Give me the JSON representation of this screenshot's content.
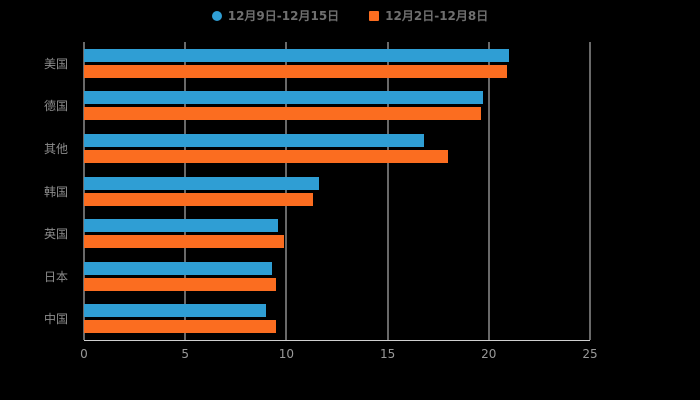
{
  "legend": [
    {
      "label": "12月9日-12月15日",
      "color": "#2f9ed4",
      "shape": "circle"
    },
    {
      "label": "12月2日-12月8日",
      "color": "#fb6d20",
      "shape": "square"
    }
  ],
  "chart_data": {
    "type": "bar",
    "orientation": "horizontal",
    "title": "",
    "categories": [
      "美国",
      "德国",
      "其他",
      "韩国",
      "英国",
      "日本",
      "中国"
    ],
    "series": [
      {
        "name": "12月9日-12月15日",
        "color": "#2f9ed4",
        "values": [
          21.0,
          19.7,
          16.8,
          11.6,
          9.6,
          9.3,
          9.0
        ]
      },
      {
        "name": "12月2日-12月8日",
        "color": "#fb6d20",
        "values": [
          20.9,
          19.6,
          18.0,
          11.3,
          9.9,
          9.5,
          9.5
        ]
      }
    ],
    "xlim": [
      0,
      25
    ],
    "xticks": [
      0,
      5,
      10,
      15,
      20,
      25
    ],
    "grid": true,
    "legend_position": "top",
    "xlabel": "",
    "ylabel": ""
  },
  "colors": {
    "background": "#000000",
    "gridline": "#d2d2d2",
    "axis_line": "#cfcfcf",
    "tick_label": "#999999",
    "category_label": "#8c8c8c",
    "legend_label": "#6f6f6f"
  }
}
